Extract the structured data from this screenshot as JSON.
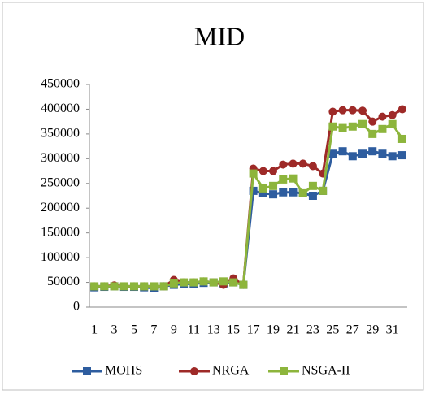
{
  "chart_data": {
    "type": "line",
    "title": "MID",
    "categories": [
      1,
      null,
      3,
      null,
      5,
      null,
      7,
      null,
      9,
      null,
      11,
      null,
      13,
      null,
      15,
      null,
      17,
      null,
      19,
      null,
      21,
      null,
      23,
      null,
      25,
      null,
      27,
      null,
      29,
      null,
      31,
      null
    ],
    "series": [
      {
        "name": "MOHS",
        "color": "#2e5d9f",
        "marker": "square",
        "values": [
          40000,
          41000,
          42000,
          41000,
          41000,
          40000,
          38000,
          42000,
          45000,
          47000,
          47000,
          49000,
          50000,
          48000,
          50000,
          45000,
          235000,
          230000,
          228000,
          232000,
          232000,
          230000,
          225000,
          235000,
          310000,
          315000,
          305000,
          310000,
          315000,
          310000,
          305000,
          307000
        ]
      },
      {
        "name": "NRGA",
        "color": "#9e2a28",
        "marker": "circle",
        "values": [
          42000,
          42000,
          44000,
          42000,
          42000,
          42000,
          42000,
          42000,
          55000,
          50000,
          50000,
          52000,
          50000,
          45000,
          58000,
          45000,
          280000,
          275000,
          275000,
          288000,
          290000,
          290000,
          285000,
          270000,
          395000,
          398000,
          398000,
          397000,
          375000,
          385000,
          388000,
          400000
        ]
      },
      {
        "name": "NSGA-II",
        "color": "#8db53c",
        "marker": "square",
        "values": [
          42000,
          42000,
          42000,
          42000,
          42000,
          42000,
          42000,
          42000,
          48000,
          50000,
          50000,
          52000,
          50000,
          52000,
          50000,
          45000,
          270000,
          240000,
          245000,
          258000,
          260000,
          230000,
          245000,
          235000,
          365000,
          362000,
          365000,
          370000,
          350000,
          360000,
          370000,
          340000
        ]
      }
    ],
    "ylim": [
      0,
      450000
    ],
    "yticks": [
      0,
      50000,
      100000,
      150000,
      200000,
      250000,
      300000,
      350000,
      400000,
      450000
    ],
    "grid": false,
    "legend": "bottom"
  }
}
